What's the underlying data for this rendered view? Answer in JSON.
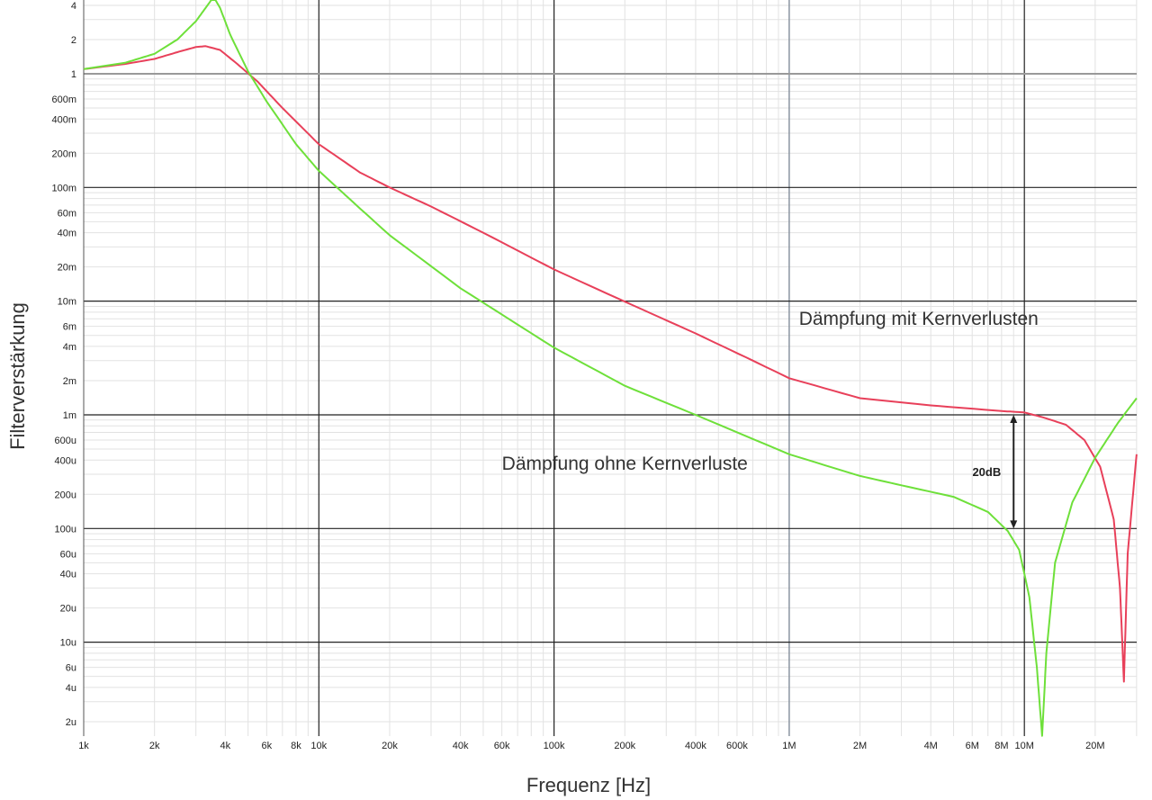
{
  "chart_data": {
    "type": "line",
    "xlabel": "Frequenz [Hz]",
    "ylabel": "Filterverstärkung",
    "x_scale": "log",
    "y_scale": "log",
    "xlim": [
      1000,
      30000000
    ],
    "ylim": [
      1.5e-06,
      5
    ],
    "grid": true,
    "x_ticks": [
      {
        "value": 1000,
        "label": "1k"
      },
      {
        "value": 2000,
        "label": "2k"
      },
      {
        "value": 4000,
        "label": "4k"
      },
      {
        "value": 6000,
        "label": "6k"
      },
      {
        "value": 8000,
        "label": "8k"
      },
      {
        "value": 10000,
        "label": "10k"
      },
      {
        "value": 20000,
        "label": "20k"
      },
      {
        "value": 40000,
        "label": "40k"
      },
      {
        "value": 60000,
        "label": "60k"
      },
      {
        "value": 100000,
        "label": "100k"
      },
      {
        "value": 200000,
        "label": "200k"
      },
      {
        "value": 400000,
        "label": "400k"
      },
      {
        "value": 600000,
        "label": "600k"
      },
      {
        "value": 1000000,
        "label": "1M"
      },
      {
        "value": 2000000,
        "label": "2M"
      },
      {
        "value": 4000000,
        "label": "4M"
      },
      {
        "value": 6000000,
        "label": "6M"
      },
      {
        "value": 8000000,
        "label": "8M"
      },
      {
        "value": 10000000,
        "label": "10M"
      },
      {
        "value": 20000000,
        "label": "20M"
      }
    ],
    "y_ticks": [
      {
        "value": 4,
        "label": "4"
      },
      {
        "value": 2,
        "label": "2"
      },
      {
        "value": 1,
        "label": "1"
      },
      {
        "value": 0.6,
        "label": "600m"
      },
      {
        "value": 0.4,
        "label": "400m"
      },
      {
        "value": 0.2,
        "label": "200m"
      },
      {
        "value": 0.1,
        "label": "100m"
      },
      {
        "value": 0.06,
        "label": "60m"
      },
      {
        "value": 0.04,
        "label": "40m"
      },
      {
        "value": 0.02,
        "label": "20m"
      },
      {
        "value": 0.01,
        "label": "10m"
      },
      {
        "value": 0.006,
        "label": "6m"
      },
      {
        "value": 0.004,
        "label": "4m"
      },
      {
        "value": 0.002,
        "label": "2m"
      },
      {
        "value": 0.001,
        "label": "1m"
      },
      {
        "value": 0.0006,
        "label": "600u"
      },
      {
        "value": 0.0004,
        "label": "400u"
      },
      {
        "value": 0.0002,
        "label": "200u"
      },
      {
        "value": 0.0001,
        "label": "100u"
      },
      {
        "value": 6e-05,
        "label": "60u"
      },
      {
        "value": 4e-05,
        "label": "40u"
      },
      {
        "value": 2e-05,
        "label": "20u"
      },
      {
        "value": 1e-05,
        "label": "10u"
      },
      {
        "value": 6e-06,
        "label": "6u"
      },
      {
        "value": 4e-06,
        "label": "4u"
      },
      {
        "value": 2e-06,
        "label": "2u"
      }
    ],
    "series": [
      {
        "color": "#e8405a",
        "x": [
          1000,
          1500,
          2000,
          2500,
          3000,
          3300,
          3800,
          4500,
          5500,
          7000,
          10000,
          15000,
          20000,
          30000,
          50000,
          100000,
          200000,
          400000,
          700000,
          1000000,
          2000000,
          4000000,
          8000000,
          10000000,
          12000000,
          15000000,
          18000000,
          21000000,
          24000000,
          25500000,
          26500000,
          27500000,
          30000000
        ],
        "y": [
          1.1,
          1.22,
          1.35,
          1.55,
          1.72,
          1.75,
          1.62,
          1.22,
          0.85,
          0.5,
          0.24,
          0.135,
          0.1,
          0.068,
          0.04,
          0.019,
          0.0099,
          0.0052,
          0.003,
          0.0021,
          0.0014,
          0.00121,
          0.00108,
          0.00105,
          0.00095,
          0.00082,
          0.0006,
          0.00035,
          0.00012,
          3e-05,
          4.5e-06,
          6e-05,
          0.00045
        ]
      },
      {
        "color": "#6ee03a",
        "x": [
          1000,
          1500,
          2000,
          2500,
          3000,
          3300,
          3500,
          3600,
          3800,
          4200,
          5000,
          6000,
          8000,
          10000,
          15000,
          20000,
          40000,
          100000,
          200000,
          400000,
          1000000,
          2000000,
          3000000,
          5000000,
          7000000,
          8500000,
          9500000,
          10500000,
          11300000,
          11900000,
          12400000,
          13500000,
          16000000,
          20000000,
          25000000,
          30000000
        ],
        "y": [
          1.1,
          1.25,
          1.5,
          2.0,
          2.9,
          3.8,
          4.5,
          4.6,
          3.8,
          2.2,
          1.05,
          0.57,
          0.24,
          0.14,
          0.065,
          0.038,
          0.013,
          0.0039,
          0.0018,
          0.001,
          0.00045,
          0.00029,
          0.00024,
          0.00019,
          0.00014,
          9.5e-05,
          6.5e-05,
          2.5e-05,
          6e-06,
          1.5e-06,
          8e-06,
          5e-05,
          0.00017,
          0.00042,
          0.00085,
          0.0014
        ]
      }
    ],
    "annotations": [
      {
        "text": "Dämpfung mit Kernverlusten",
        "x": 1100000,
        "y": 0.0062
      },
      {
        "text": "Dämpfung ohne Kernverluste",
        "x": 200000,
        "y": 0.00033
      },
      {
        "text": "20dB",
        "x_from": 9000000,
        "y_from": 0.001,
        "y_to": 0.0001
      }
    ]
  }
}
